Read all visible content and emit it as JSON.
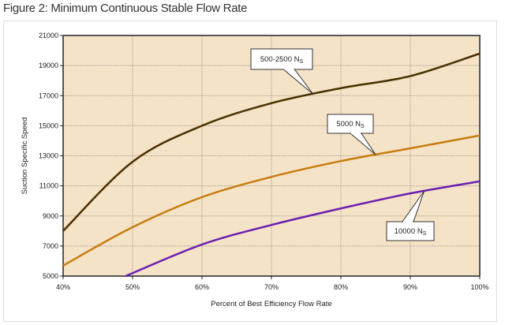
{
  "title": "Figure 2: Minimum Continuous Stable Flow Rate",
  "chart_data": {
    "type": "line",
    "title": "Figure 2: Minimum Continuous Stable Flow Rate",
    "xlabel": "Percent of Best Efficiency Flow Rate",
    "ylabel": "Suction Specific Speed",
    "xlim": [
      40,
      100
    ],
    "ylim": [
      5000,
      21000
    ],
    "x_ticks": [
      40,
      50,
      60,
      70,
      80,
      90,
      100
    ],
    "x_tick_labels": [
      "40%",
      "50%",
      "60%",
      "70%",
      "80%",
      "90%",
      "100%"
    ],
    "y_ticks": [
      5000,
      7000,
      9000,
      11000,
      13000,
      15000,
      17000,
      19000,
      21000
    ],
    "y_tick_labels": [
      "5000",
      "7000",
      "9000",
      "11000",
      "13000",
      "15000",
      "17000",
      "19000",
      "21000"
    ],
    "grid": true,
    "background": "#f5e3c8",
    "series": [
      {
        "name": "500-2500 N",
        "sub": "S",
        "color": "#4a3000",
        "x": [
          40,
          50,
          60,
          70,
          80,
          90,
          100
        ],
        "y": [
          8000,
          12600,
          15000,
          16500,
          17500,
          18300,
          19800
        ],
        "label_at": 76
      },
      {
        "name": "5000 N",
        "sub": "S",
        "color": "#c87d10",
        "x": [
          40,
          50,
          60,
          70,
          80,
          90,
          100
        ],
        "y": [
          5700,
          8250,
          10250,
          11600,
          12650,
          13500,
          14350
        ],
        "label_at": 85
      },
      {
        "name": "10000 N",
        "sub": "S",
        "color": "#6a1fb0",
        "x": [
          49,
          60,
          70,
          80,
          90,
          100
        ],
        "y": [
          5000,
          7100,
          8400,
          9500,
          10500,
          11300
        ],
        "label_at": 92
      }
    ]
  }
}
